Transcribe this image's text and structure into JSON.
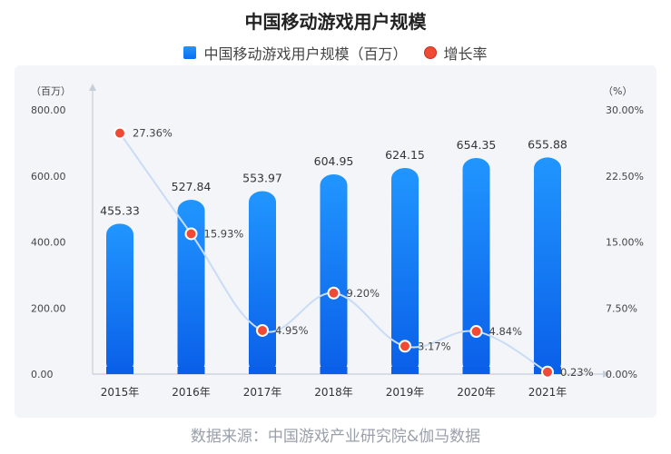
{
  "title": "中国移动游戏用户规模",
  "legend": {
    "bar_label": "中国移动游戏用户规模（百万）",
    "line_label": "增长率"
  },
  "source": "数据来源：中国游戏产业研究院&伽马数据",
  "colors": {
    "bar_top": "#2196ff",
    "bar_bottom": "#0a5fe8",
    "line": "#c9dcf5",
    "dot": "#f04a35",
    "panel": "#f3f5f9"
  },
  "chart_data": {
    "type": "bar",
    "categories": [
      "2015年",
      "2016年",
      "2017年",
      "2018年",
      "2019年",
      "2020年",
      "2021年"
    ],
    "series": [
      {
        "name": "中国移动游戏用户规模（百万）",
        "type": "bar",
        "axis": "left",
        "values": [
          455.33,
          527.84,
          553.97,
          604.95,
          624.15,
          654.35,
          655.88
        ],
        "labels": [
          "455.33",
          "527.84",
          "553.97",
          "604.95",
          "624.15",
          "654.35",
          "655.88"
        ]
      },
      {
        "name": "增长率",
        "type": "line",
        "axis": "right",
        "values": [
          27.36,
          15.93,
          4.95,
          9.2,
          3.17,
          4.84,
          0.23
        ],
        "labels": [
          "27.36%",
          "15.93%",
          "4.95%",
          "9.20%",
          "3.17%",
          "4.84%",
          "0.23%"
        ]
      }
    ],
    "left_axis": {
      "unit": "（百万）",
      "ticks": [
        0,
        200,
        400,
        600,
        800
      ],
      "tick_labels": [
        "0.00",
        "200.00",
        "400.00",
        "600.00",
        "800.00"
      ],
      "ylim": [
        0,
        800
      ]
    },
    "right_axis": {
      "unit": "（%）",
      "ticks": [
        0,
        7.5,
        15,
        22.5,
        30
      ],
      "tick_labels": [
        "0.00%",
        "7.50%",
        "15.00%",
        "22.50%",
        "30.00%"
      ],
      "ylim": [
        0,
        30
      ]
    },
    "grid": false,
    "legend_position": "top-center"
  }
}
